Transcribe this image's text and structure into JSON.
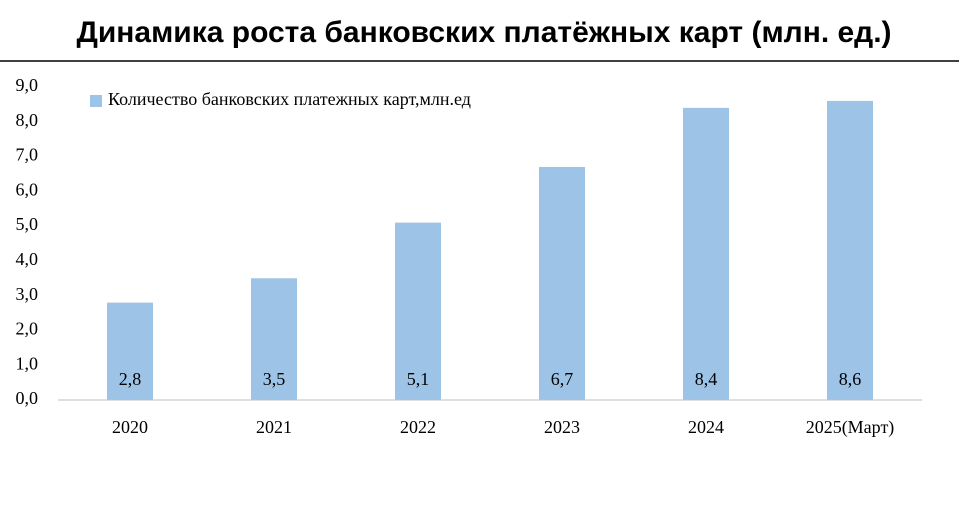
{
  "chart_data": {
    "type": "bar",
    "title": "Динамика роста банковских платёжных карт (млн. ед.)",
    "categories": [
      "2020",
      "2021",
      "2022",
      "2023",
      "2024",
      "2025(Март)"
    ],
    "series": [
      {
        "name": "Количество банковских платежных карт,млн.ед",
        "color": "#9dc3e6",
        "values": [
          2.8,
          3.5,
          5.1,
          6.7,
          8.4,
          8.6
        ],
        "value_labels": [
          "2,8",
          "3,5",
          "5,1",
          "6,7",
          "8,4",
          "8,6"
        ]
      }
    ],
    "ylim": [
      0,
      9
    ],
    "yticks": [
      {
        "value": 0,
        "label": "0,0"
      },
      {
        "value": 1,
        "label": "1,0"
      },
      {
        "value": 2,
        "label": "2,0"
      },
      {
        "value": 3,
        "label": "3,0"
      },
      {
        "value": 4,
        "label": "4,0"
      },
      {
        "value": 5,
        "label": "5,0"
      },
      {
        "value": 6,
        "label": "6,0"
      },
      {
        "value": 7,
        "label": "7,0"
      },
      {
        "value": 8,
        "label": "8,0"
      },
      {
        "value": 9,
        "label": "9,0"
      }
    ],
    "grid": false,
    "legend": "top-left"
  }
}
